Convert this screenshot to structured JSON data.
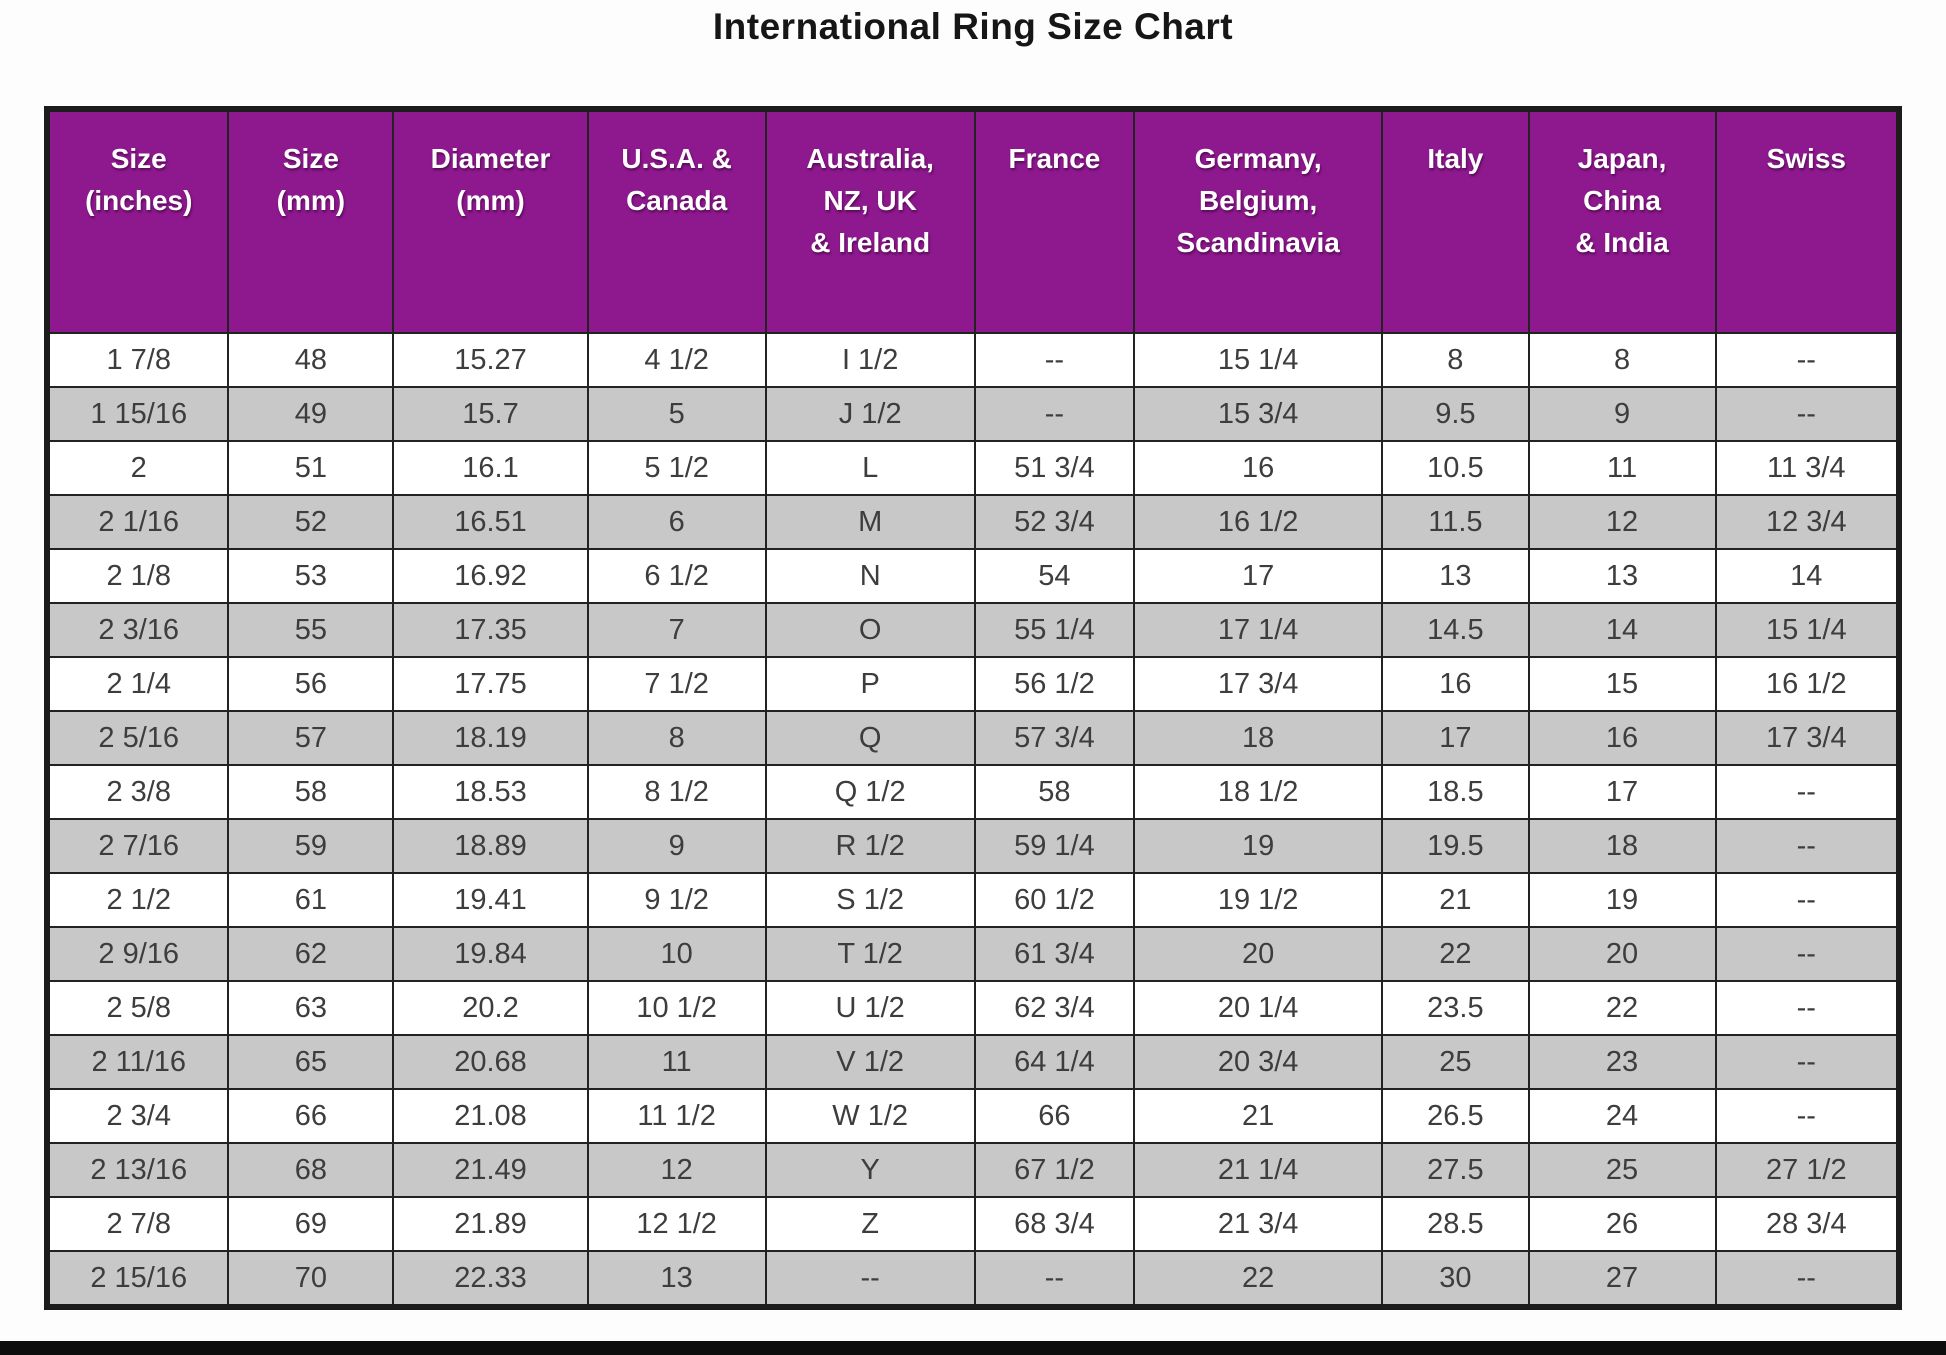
{
  "title": "International Ring Size Chart",
  "colors": {
    "header_bg": "#8E188E",
    "row_white": "#FFFFFF",
    "row_gray": "#C8C8C8",
    "border": "#1C1C1C",
    "header_text": "#FFFFFF",
    "cell_text": "#3D3D3D"
  },
  "chart_data": {
    "type": "table",
    "title": "International Ring Size Chart",
    "columns": [
      "Size (inches)",
      "Size (mm)",
      "Diameter (mm)",
      "U.S.A. & Canada",
      "Australia, NZ, UK & Ireland",
      "France",
      "Germany, Belgium, Scandinavia",
      "Italy",
      "Japan, China & India",
      "Swiss"
    ],
    "header_display": [
      "Size\n(inches)",
      "Size\n(mm)",
      "Diameter\n(mm)",
      "U.S.A. &\nCanada",
      "Australia,\nNZ, UK\n& Ireland",
      "France",
      "Germany,\nBelgium,\nScandinavia",
      "Italy",
      "Japan,\nChina\n& India",
      "Swiss"
    ],
    "rows": [
      [
        "1 7/8",
        "48",
        "15.27",
        "4 1/2",
        "I 1/2",
        "--",
        "15 1/4",
        "8",
        "8",
        "--"
      ],
      [
        "1 15/16",
        "49",
        "15.7",
        "5",
        "J 1/2",
        "--",
        "15 3/4",
        "9.5",
        "9",
        "--"
      ],
      [
        "2",
        "51",
        "16.1",
        "5 1/2",
        "L",
        "51 3/4",
        "16",
        "10.5",
        "11",
        "11 3/4"
      ],
      [
        "2 1/16",
        "52",
        "16.51",
        "6",
        "M",
        "52 3/4",
        "16 1/2",
        "11.5",
        "12",
        "12 3/4"
      ],
      [
        "2 1/8",
        "53",
        "16.92",
        "6 1/2",
        "N",
        "54",
        "17",
        "13",
        "13",
        "14"
      ],
      [
        "2 3/16",
        "55",
        "17.35",
        "7",
        "O",
        "55 1/4",
        "17 1/4",
        "14.5",
        "14",
        "15 1/4"
      ],
      [
        "2 1/4",
        "56",
        "17.75",
        "7 1/2",
        "P",
        "56 1/2",
        "17 3/4",
        "16",
        "15",
        "16 1/2"
      ],
      [
        "2 5/16",
        "57",
        "18.19",
        "8",
        "Q",
        "57 3/4",
        "18",
        "17",
        "16",
        "17 3/4"
      ],
      [
        "2 3/8",
        "58",
        "18.53",
        "8 1/2",
        "Q 1/2",
        "58",
        "18 1/2",
        "18.5",
        "17",
        "--"
      ],
      [
        "2 7/16",
        "59",
        "18.89",
        "9",
        "R 1/2",
        "59 1/4",
        "19",
        "19.5",
        "18",
        "--"
      ],
      [
        "2 1/2",
        "61",
        "19.41",
        "9 1/2",
        "S 1/2",
        "60 1/2",
        "19 1/2",
        "21",
        "19",
        "--"
      ],
      [
        "2 9/16",
        "62",
        "19.84",
        "10",
        "T 1/2",
        "61 3/4",
        "20",
        "22",
        "20",
        "--"
      ],
      [
        "2 5/8",
        "63",
        "20.2",
        "10 1/2",
        "U 1/2",
        "62 3/4",
        "20 1/4",
        "23.5",
        "22",
        "--"
      ],
      [
        "2 11/16",
        "65",
        "20.68",
        "11",
        "V 1/2",
        "64 1/4",
        "20 3/4",
        "25",
        "23",
        "--"
      ],
      [
        "2 3/4",
        "66",
        "21.08",
        "11 1/2",
        "W 1/2",
        "66",
        "21",
        "26.5",
        "24",
        "--"
      ],
      [
        "2 13/16",
        "68",
        "21.49",
        "12",
        "Y",
        "67 1/2",
        "21 1/4",
        "27.5",
        "25",
        "27 1/2"
      ],
      [
        "2 7/8",
        "69",
        "21.89",
        "12 1/2",
        "Z",
        "68 3/4",
        "21 3/4",
        "28.5",
        "26",
        "28 3/4"
      ],
      [
        "2 15/16",
        "70",
        "22.33",
        "13",
        "--",
        "--",
        "22",
        "30",
        "27",
        "--"
      ]
    ]
  }
}
